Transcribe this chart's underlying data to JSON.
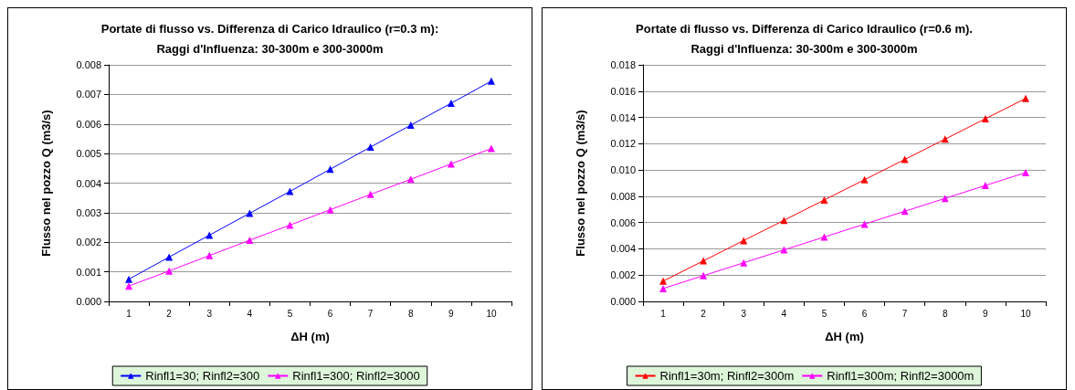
{
  "chart_data": [
    {
      "type": "line",
      "title": "Portate di flusso vs. Differenza di Carico Idraulico (r=0.3 m):\nRaggi d'Influenza: 30-300m e 300-3000m",
      "xlabel": "ΔH (m)",
      "ylabel": "Flusso nel pozzo Q (m3/s)",
      "categories": [
        "1",
        "2",
        "3",
        "4",
        "5",
        "6",
        "7",
        "8",
        "9",
        "10"
      ],
      "series": [
        {
          "name": "Rinfl1=30; Rinfl2=300",
          "color": "#0000ff",
          "values": [
            0.00075,
            0.0015,
            0.00224,
            0.00298,
            0.00372,
            0.00447,
            0.00522,
            0.00596,
            0.0067,
            0.00745
          ]
        },
        {
          "name": "Rinfl1=300; Rinfl2=3000",
          "color": "#ff00ff",
          "values": [
            0.00052,
            0.00103,
            0.00155,
            0.00207,
            0.00258,
            0.0031,
            0.00362,
            0.00413,
            0.00465,
            0.00517
          ]
        }
      ],
      "ylim": [
        0,
        0.008
      ],
      "yticks": [
        {
          "value": 0,
          "label": "0.000"
        },
        {
          "value": 0.001,
          "label": "0.001"
        },
        {
          "value": 0.002,
          "label": "0.002"
        },
        {
          "value": 0.003,
          "label": "0.003"
        },
        {
          "value": 0.004,
          "label": "0.004"
        },
        {
          "value": 0.005,
          "label": "0.005"
        },
        {
          "value": 0.006,
          "label": "0.006"
        },
        {
          "value": 0.007,
          "label": "0.007"
        },
        {
          "value": 0.008,
          "label": "0.008"
        }
      ],
      "grid": "y",
      "legend": "bottom",
      "marker": "triangle"
    },
    {
      "type": "line",
      "title": "Portate di flusso vs. Differenza di Carico Idraulico (r=0.6 m).\nRaggi d'Influenza: 30-300m e 300-3000m",
      "xlabel": "ΔH (m)",
      "ylabel": "Flusso nel pozzo Q (m3/s)",
      "categories": [
        "1",
        "2",
        "3",
        "4",
        "5",
        "6",
        "7",
        "8",
        "9",
        "10"
      ],
      "series": [
        {
          "name": "Rinfl1=30m; Rinfl2=300m",
          "color": "#ff0000",
          "values": [
            0.00154,
            0.00309,
            0.00463,
            0.00617,
            0.00772,
            0.00926,
            0.0108,
            0.01235,
            0.0139,
            0.01544
          ]
        },
        {
          "name": "Rinfl1=300m; Rinfl2=3000m",
          "color": "#ff00ff",
          "values": [
            0.00098,
            0.00196,
            0.00294,
            0.00392,
            0.0049,
            0.00588,
            0.00686,
            0.00784,
            0.00882,
            0.0098
          ]
        }
      ],
      "ylim": [
        0,
        0.018
      ],
      "yticks": [
        {
          "value": 0,
          "label": "0.000"
        },
        {
          "value": 0.002,
          "label": "0.002"
        },
        {
          "value": 0.004,
          "label": "0.004"
        },
        {
          "value": 0.006,
          "label": "0.006"
        },
        {
          "value": 0.008,
          "label": "0.008"
        },
        {
          "value": 0.01,
          "label": "0.010"
        },
        {
          "value": 0.012,
          "label": "0.012"
        },
        {
          "value": 0.014,
          "label": "0.014"
        },
        {
          "value": 0.016,
          "label": "0.016"
        },
        {
          "value": 0.018,
          "label": "0.018"
        }
      ],
      "grid": "y",
      "legend": "bottom",
      "marker": "triangle"
    }
  ]
}
